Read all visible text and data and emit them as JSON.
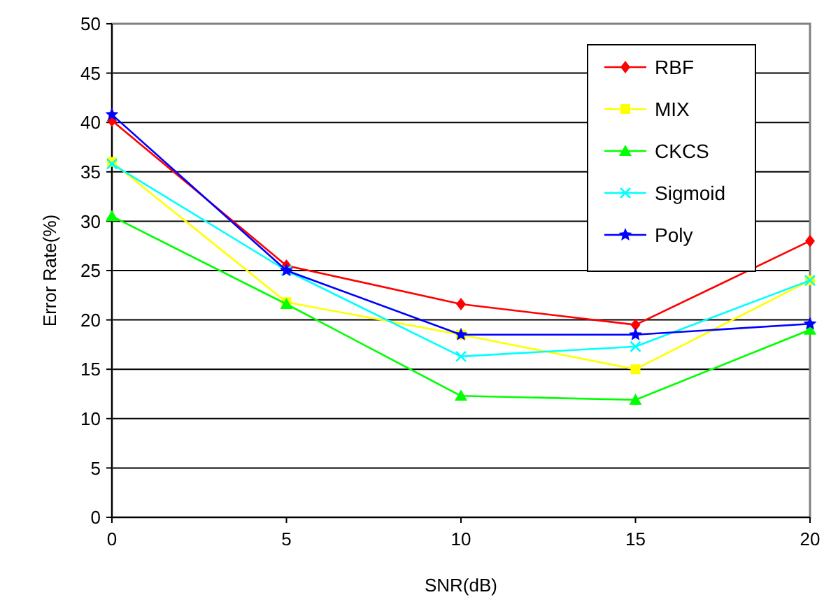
{
  "chart_data": {
    "type": "line",
    "xlabel": "SNR(dB)",
    "ylabel": "Error Rate(%)",
    "x": [
      0,
      5,
      10,
      15,
      20
    ],
    "xlim": [
      0,
      20
    ],
    "xticks": [
      0,
      5,
      10,
      15,
      20
    ],
    "ylim": [
      0,
      50
    ],
    "yticks": [
      0,
      5,
      10,
      15,
      20,
      25,
      30,
      35,
      40,
      45,
      50
    ],
    "grid": "y",
    "legend": "top right",
    "series": [
      {
        "name": "RBF",
        "color": "#ff0000",
        "marker": "diamond",
        "values": [
          40.2,
          25.5,
          21.6,
          19.5,
          28
        ]
      },
      {
        "name": "MIX",
        "color": "#ffff00",
        "marker": "square",
        "values": [
          36,
          21.8,
          18.5,
          15,
          24
        ]
      },
      {
        "name": "CKCS",
        "color": "#00ff00",
        "marker": "triangle",
        "values": [
          30.5,
          21.6,
          12.3,
          11.9,
          19
        ]
      },
      {
        "name": "Sigmoid",
        "color": "#00ffff",
        "marker": "cross",
        "values": [
          35.8,
          25,
          16.3,
          17.3,
          24
        ]
      },
      {
        "name": "Poly",
        "color": "#0000ff",
        "marker": "star",
        "values": [
          40.8,
          25,
          18.5,
          18.5,
          19.6
        ]
      }
    ]
  }
}
